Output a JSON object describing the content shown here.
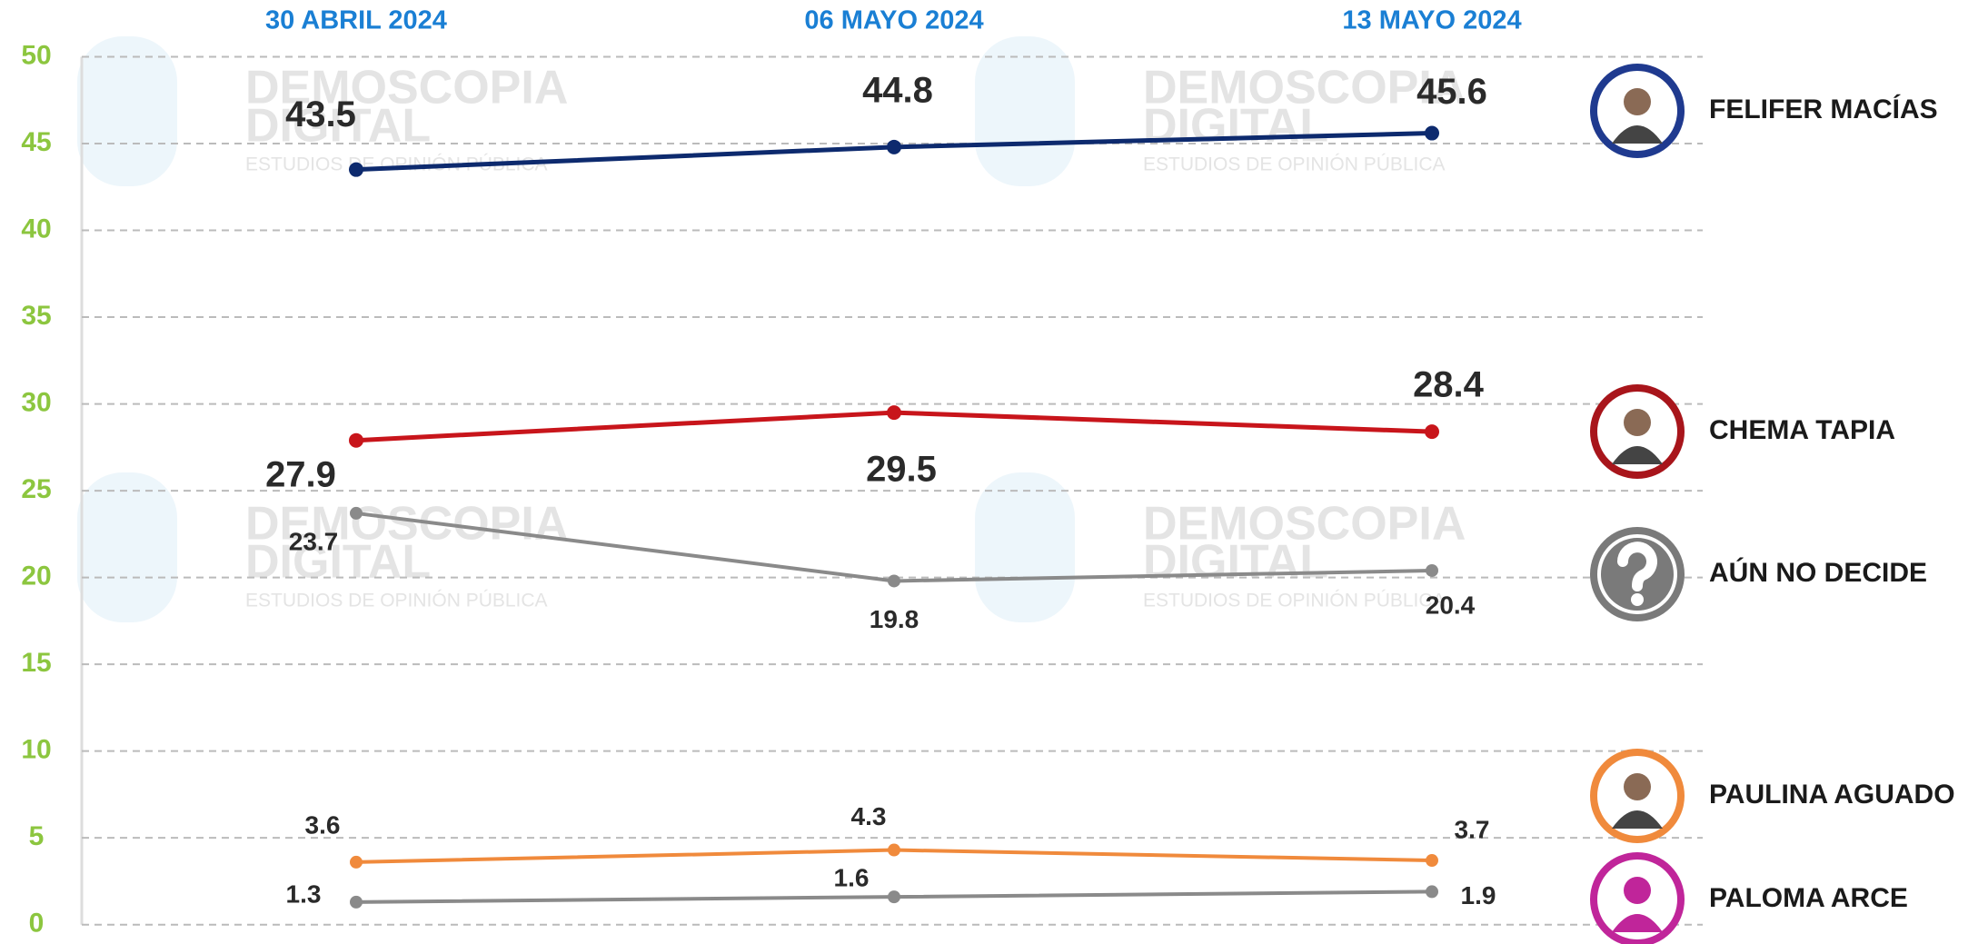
{
  "chart_data": {
    "type": "line",
    "x": [
      "30 ABRIL 2024",
      "06 MAYO 2024",
      "13 MAYO 2024"
    ],
    "ylim": [
      0,
      50
    ],
    "yticks": [
      0,
      5,
      10,
      15,
      20,
      25,
      30,
      35,
      40,
      45,
      50
    ],
    "grid": true,
    "series": [
      {
        "name": "FELIFER MACÍAS",
        "color": "#0d2a6e",
        "icon_color": "#1f3a8f",
        "values": [
          43.5,
          44.8,
          45.6
        ]
      },
      {
        "name": "CHEMA TAPIA",
        "color": "#c8151b",
        "icon_color": "#a8151b",
        "values": [
          27.9,
          29.5,
          28.4
        ]
      },
      {
        "name": "AÚN NO DECIDE",
        "color": "#8a8a8a",
        "icon_color": "#7a7a7a",
        "values": [
          23.7,
          19.8,
          20.4
        ]
      },
      {
        "name": "PAULINA AGUADO",
        "color": "#f08a3c",
        "icon_color": "#f08a3c",
        "values": [
          3.6,
          4.3,
          3.7
        ]
      },
      {
        "name": "PALOMA ARCE",
        "color": "#8a8a8a",
        "icon_color": "#c0259a",
        "values": [
          1.3,
          1.6,
          1.9
        ]
      }
    ],
    "watermark": {
      "line1": "DEMOSCOPIA",
      "line2": "DIGITAL",
      "line3": "ESTUDIOS DE OPINIÓN PÚBLICA"
    }
  }
}
